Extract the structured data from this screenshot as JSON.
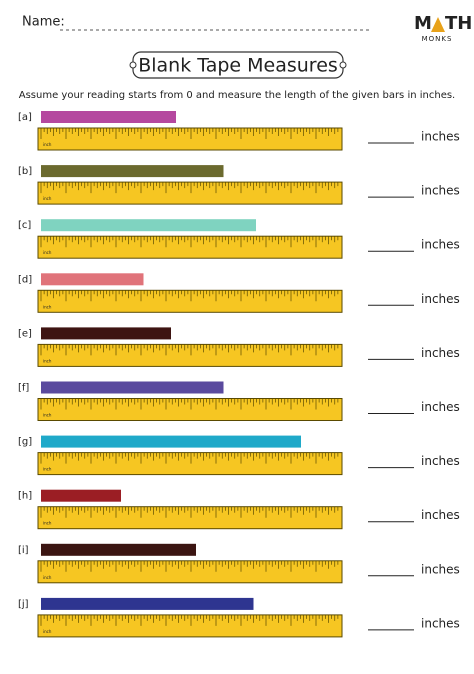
{
  "header": {
    "name_label": "Name:",
    "brand_left": "M",
    "brand_right": "TH",
    "brand_sub": "MONKS"
  },
  "title": "Blank Tape Measures",
  "instructions": "Assume your reading starts from 0 and measure the length of the given bars in inches.",
  "unit": "inches",
  "ruler_label": "inch",
  "rows": [
    {
      "label": "[a]",
      "length": 5.4,
      "color": "#b5489f"
    },
    {
      "label": "[b]",
      "length": 7.3,
      "color": "#6b6a2e"
    },
    {
      "label": "[c]",
      "length": 8.6,
      "color": "#7fd3c0"
    },
    {
      "label": "[d]",
      "length": 4.1,
      "color": "#e0737a"
    },
    {
      "label": "[e]",
      "length": 5.2,
      "color": "#3e1412"
    },
    {
      "label": "[f]",
      "length": 7.3,
      "color": "#5a4a9e"
    },
    {
      "label": "[g]",
      "length": 10.4,
      "color": "#1fa9c9"
    },
    {
      "label": "[h]",
      "length": 3.2,
      "color": "#9b1e24"
    },
    {
      "label": "[i]",
      "length": 6.2,
      "color": "#3b1512"
    },
    {
      "label": "[j]",
      "length": 8.5,
      "color": "#2e3590"
    }
  ]
}
